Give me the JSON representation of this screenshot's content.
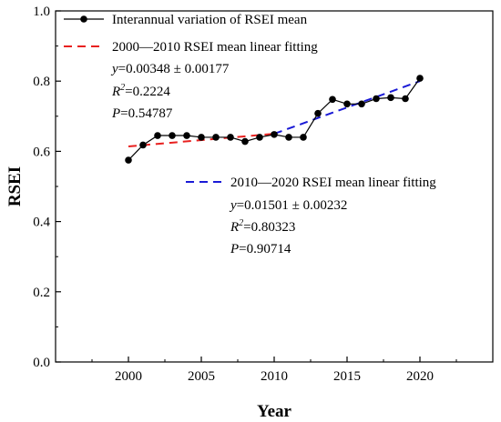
{
  "chart_data": {
    "type": "line",
    "xlabel": "Year",
    "ylabel": "RSEI",
    "xlim": [
      1995,
      2025
    ],
    "ylim": [
      0.0,
      1.0
    ],
    "x_ticks": [
      2000,
      2005,
      2010,
      2015,
      2020
    ],
    "y_ticks": [
      0.0,
      0.2,
      0.4,
      0.6,
      0.8,
      1.0
    ],
    "grid": false,
    "legend_position": "top-left",
    "series": [
      {
        "name": "Interannual variation of RSEI mean",
        "color": "#000000",
        "marker": "circle",
        "x": [
          2000,
          2001,
          2002,
          2003,
          2004,
          2005,
          2006,
          2007,
          2008,
          2009,
          2010,
          2011,
          2012,
          2013,
          2014,
          2015,
          2016,
          2017,
          2018,
          2019,
          2020
        ],
        "y": [
          0.575,
          0.618,
          0.645,
          0.645,
          0.645,
          0.64,
          0.64,
          0.64,
          0.628,
          0.64,
          0.648,
          0.64,
          0.64,
          0.708,
          0.748,
          0.735,
          0.735,
          0.75,
          0.753,
          0.75,
          0.808
        ]
      },
      {
        "name": "2000—2010 RSEI mean linear fitting",
        "color": "#e8201f",
        "dashed": true,
        "x": [
          2000,
          2010
        ],
        "y": [
          0.614,
          0.65
        ]
      },
      {
        "name": "2010—2020 RSEI mean linear fitting",
        "color": "#1a1ad6",
        "dashed": true,
        "x": [
          2010,
          2020
        ],
        "y": [
          0.65,
          0.8
        ]
      }
    ],
    "fit_2000_2010": {
      "label": "2000—2010 RSEI mean linear fitting",
      "eq_var": "y",
      "eq_rest": "=0.00348 ± 0.00177",
      "r2_var": "R",
      "r2_sup": "2",
      "r2_rest": "=0.2224",
      "p_var": "P",
      "p_rest": "=0.54787"
    },
    "fit_2010_2020": {
      "label": "2010—2020 RSEI mean linear fitting",
      "eq_var": "y",
      "eq_rest": "=0.01501 ± 0.00232",
      "r2_var": "R",
      "r2_sup": "2",
      "r2_rest": "=0.80323",
      "p_var": "P",
      "p_rest": "=0.90714"
    }
  }
}
